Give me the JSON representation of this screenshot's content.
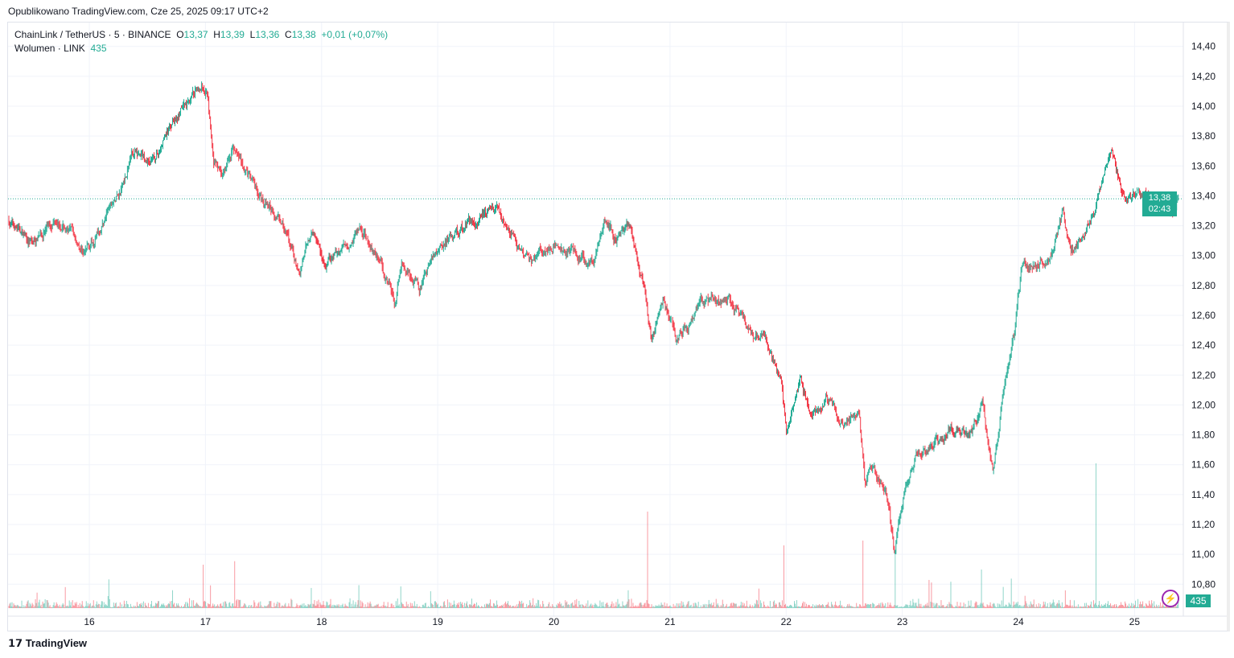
{
  "published": "Opublikowano TradingView.com, Cze 25, 2025 09:17 UTC+2",
  "legend": {
    "symbol": "ChainLink / TetherUS · 5 · BINANCE",
    "o_label": "O",
    "o": "13,37",
    "h_label": "H",
    "h": "13,39",
    "l_label": "L",
    "l": "13,36",
    "c_label": "C",
    "c": "13,38",
    "change": "+0,01 (+0,07%)",
    "volume_label": "Wolumen · LINK",
    "volume": "435"
  },
  "price_tag": {
    "price": "13,38",
    "countdown": "02:43"
  },
  "volume_tag": "435",
  "logo": "TradingView",
  "colors": {
    "up": "#22ab94",
    "down": "#f23645",
    "grid": "#f0f3fa"
  },
  "chart_data": {
    "type": "candlestick",
    "title": "ChainLink / TetherUS · 5 · BINANCE",
    "y_ticks": [
      "14,40",
      "14,20",
      "14,00",
      "13,80",
      "13,60",
      "13,40",
      "13,20",
      "13,00",
      "12,80",
      "12,60",
      "12,40",
      "12,20",
      "12,00",
      "11,80",
      "11,60",
      "11,40",
      "11,20",
      "11,00",
      "10,80"
    ],
    "ylim": [
      10.64,
      14.56
    ],
    "x_ticks": [
      "16",
      "17",
      "18",
      "19",
      "20",
      "21",
      "22",
      "23",
      "24",
      "25"
    ],
    "xlim": [
      15.3,
      25.42
    ],
    "last_price": 13.38,
    "price_path": [
      [
        15.3,
        13.24
      ],
      [
        15.51,
        13.08
      ],
      [
        15.72,
        13.27
      ],
      [
        15.96,
        13.03
      ],
      [
        16.13,
        13.24
      ],
      [
        16.27,
        13.43
      ],
      [
        16.37,
        13.7
      ],
      [
        16.55,
        13.62
      ],
      [
        16.72,
        13.9
      ],
      [
        16.97,
        14.14
      ],
      [
        17.02,
        14.08
      ],
      [
        17.07,
        13.68
      ],
      [
        17.14,
        13.52
      ],
      [
        17.24,
        13.73
      ],
      [
        17.45,
        13.41
      ],
      [
        17.66,
        13.24
      ],
      [
        17.81,
        12.86
      ],
      [
        17.92,
        13.19
      ],
      [
        18.04,
        12.92
      ],
      [
        18.32,
        13.19
      ],
      [
        18.49,
        13.0
      ],
      [
        18.63,
        12.7
      ],
      [
        18.7,
        12.95
      ],
      [
        18.84,
        12.78
      ],
      [
        19.01,
        13.08
      ],
      [
        19.29,
        13.22
      ],
      [
        19.5,
        13.35
      ],
      [
        19.74,
        12.97
      ],
      [
        20.02,
        13.08
      ],
      [
        20.33,
        12.95
      ],
      [
        20.44,
        13.24
      ],
      [
        20.54,
        13.11
      ],
      [
        20.65,
        13.22
      ],
      [
        20.78,
        12.76
      ],
      [
        20.84,
        12.43
      ],
      [
        20.94,
        12.7
      ],
      [
        21.06,
        12.43
      ],
      [
        21.27,
        12.67
      ],
      [
        21.51,
        12.7
      ],
      [
        21.69,
        12.51
      ],
      [
        21.83,
        12.43
      ],
      [
        21.95,
        12.19
      ],
      [
        22.0,
        11.83
      ],
      [
        22.12,
        12.16
      ],
      [
        22.21,
        11.91
      ],
      [
        22.35,
        12.05
      ],
      [
        22.49,
        11.86
      ],
      [
        22.63,
        11.94
      ],
      [
        22.68,
        11.45
      ],
      [
        22.73,
        11.59
      ],
      [
        22.87,
        11.4
      ],
      [
        22.93,
        11.02
      ],
      [
        23.01,
        11.4
      ],
      [
        23.11,
        11.67
      ],
      [
        23.28,
        11.75
      ],
      [
        23.42,
        11.86
      ],
      [
        23.6,
        11.81
      ],
      [
        23.69,
        12.02
      ],
      [
        23.78,
        11.51
      ],
      [
        23.87,
        12.05
      ],
      [
        23.96,
        12.43
      ],
      [
        24.03,
        12.92
      ],
      [
        24.26,
        12.97
      ],
      [
        24.38,
        13.27
      ],
      [
        24.45,
        13.0
      ],
      [
        24.56,
        13.16
      ],
      [
        24.67,
        13.35
      ],
      [
        24.8,
        13.68
      ],
      [
        24.92,
        13.38
      ],
      [
        25.16,
        13.43
      ],
      [
        25.33,
        13.27
      ],
      [
        25.38,
        13.38
      ]
    ],
    "volume_spikes": [
      [
        16.98,
        0.45
      ],
      [
        17.25,
        0.35
      ],
      [
        20.81,
        1.0
      ],
      [
        21.98,
        0.65
      ],
      [
        22.66,
        0.7
      ],
      [
        22.94,
        0.6
      ],
      [
        23.68,
        0.4
      ],
      [
        24.67,
        1.5
      ]
    ]
  }
}
